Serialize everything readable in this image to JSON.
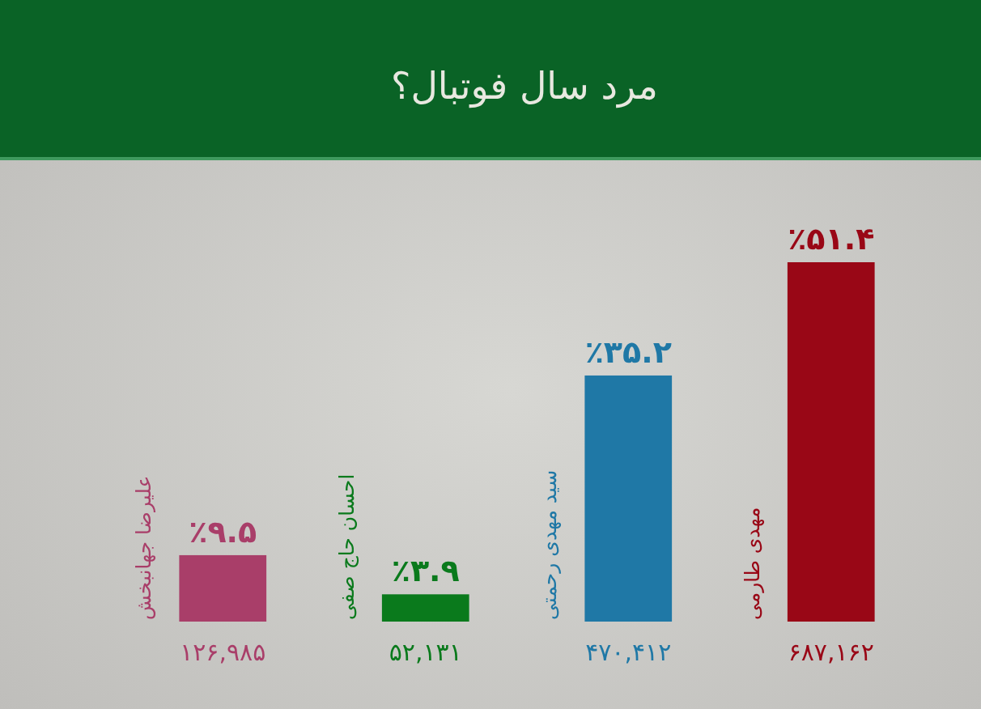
{
  "chart_data": {
    "type": "bar",
    "title": "مرد سال فوتبال؟",
    "categories": [
      "علیرضا جهانبخش",
      "احسان حاج صفی",
      "سید مهدی رحمتی",
      "مهدی طارمی"
    ],
    "values": [
      9.5,
      3.9,
      35.2,
      51.4
    ],
    "colors": [
      "#a93e69",
      "#0a7a1c",
      "#1f78a6",
      "#990716"
    ],
    "value_labels": [
      "٪۹.۵",
      "٪۳.۹",
      "٪۳۵.۲",
      "٪۵۱.۴"
    ],
    "annotations": [
      "۱۲۶,۹۸۵",
      "۵۲,۱۳۱",
      "۴۷۰,۴۱۲",
      "۶۸۷,۱۶۲"
    ]
  }
}
